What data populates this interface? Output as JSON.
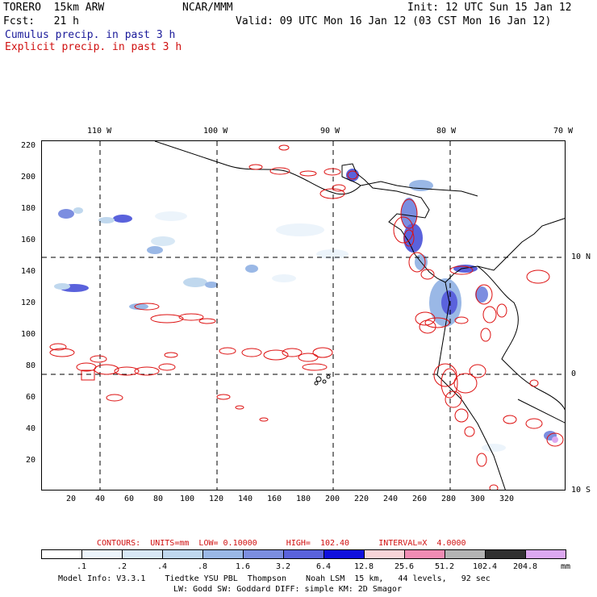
{
  "header": {
    "model": "TORERO  15km ARW",
    "org": "NCAR/MMM",
    "init": "Init: 12 UTC Sun 15 Jan 12",
    "fcst": "Fcst:   21 h",
    "valid": "Valid: 09 UTC Mon 16 Jan 12 (03 CST Mon 16 Jan 12)",
    "cumulus_label": "Cumulus precip. in past 3 h",
    "explicit_label": "Explicit precip. in past 3 h"
  },
  "map": {
    "lon_labels": [
      "110 W",
      "100 W",
      "90 W",
      "80 W",
      "70 W"
    ],
    "lat_labels": [
      "10 N",
      "0",
      "10 S"
    ],
    "y_ticks": [
      "220",
      "200",
      "180",
      "160",
      "140",
      "120",
      "100",
      "80",
      "60",
      "40",
      "20"
    ],
    "x_ticks": [
      "20",
      "40",
      "60",
      "80",
      "100",
      "120",
      "140",
      "160",
      "180",
      "200",
      "220",
      "240",
      "260",
      "280",
      "300",
      "320"
    ]
  },
  "contours": {
    "text": "CONTOURS:  UNITS=mm  LOW= 0.10000      HIGH=  102.40      INTERVAL=X  4.0000"
  },
  "legend": {
    "colors": [
      "#ffffff",
      "#ecf4fb",
      "#d8e8f5",
      "#c0d8ee",
      "#9ab8e6",
      "#7c8ee0",
      "#5a62dc",
      "#1010dd",
      "#f8d4d8",
      "#f08cb4",
      "#b4b4b4",
      "#303030",
      "#dca8f0"
    ],
    "labels": [
      ".1",
      ".2",
      ".4",
      ".8",
      "1.6",
      "3.2",
      "6.4",
      "12.8",
      "25.6",
      "51.2",
      "102.4",
      "204.8"
    ],
    "unit": "mm"
  },
  "footer": {
    "line1": "Model Info: V3.3.1    Tiedtke YSU PBL  Thompson    Noah LSM  15 km,   44 levels,   92 sec",
    "line2": "LW: Godd SW: Goddard DIFF: simple KM: 2D Smagor"
  }
}
